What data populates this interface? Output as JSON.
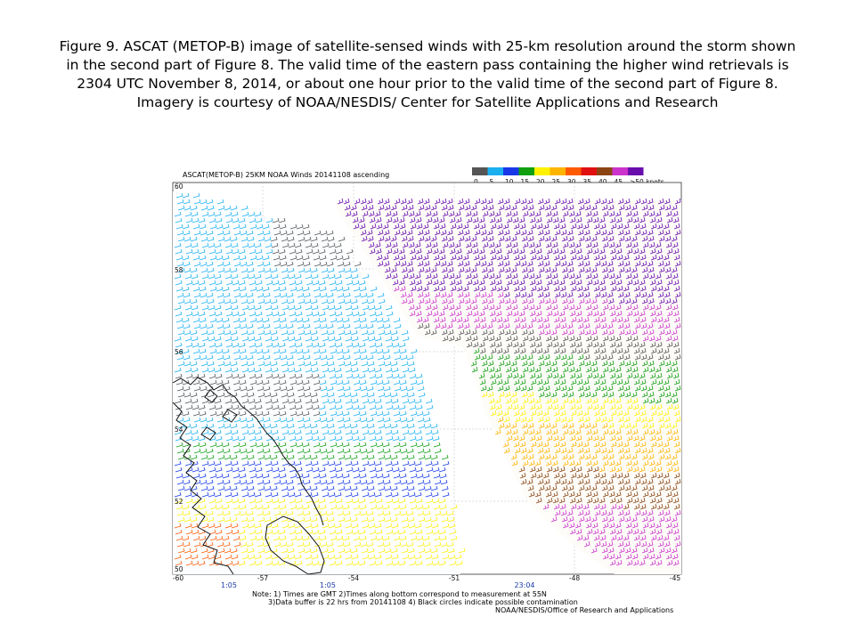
{
  "caption": {
    "lines": [
      "Figure 9.  ASCAT (METOP-B) image of satellite-sensed winds with 25-km resolution around the storm shown",
      "in the second part of Figure 8.  The valid time of the eastern pass containing the higher wind retrievals is",
      "2304 UTC November 8, 2014, or about one hour prior to the valid time of the second part of Figure 8.",
      "Imagery is courtesy of NOAA/NESDIS/ Center for Satellite Applications and Research"
    ]
  },
  "map": {
    "title": "ASCAT(METOP-B) 25KM NOAA Winds 20141108 ascending",
    "legend": {
      "labels": [
        "0",
        "5",
        "10",
        "15",
        "20",
        "25",
        "30",
        "35",
        "40",
        "45",
        ">50 knots"
      ],
      "colors": [
        "#555555",
        "#1ab0f0",
        "#1838e8",
        "#10a010",
        "#fff200",
        "#ffb400",
        "#ff5a00",
        "#e01010",
        "#8b4513",
        "#cc33cc",
        "#6a0dad"
      ]
    },
    "lat_labels": [
      "60",
      "58",
      "56",
      "54",
      "52",
      "50"
    ],
    "lon_labels": [
      "-60",
      "-57",
      "-54",
      "-51",
      "-48",
      "-45"
    ],
    "pass_times": [
      "1:05",
      "1:05",
      "23:04"
    ],
    "notes": [
      "Note: 1) Times are GMT 2)Times along bottom correspond to measurement at 55N",
      "3)Data buffer is 22 hrs from 20141108 4) Black circles indicate possible contamination"
    ],
    "credit": "NOAA/NESDIS/Office of Research and Applications"
  }
}
